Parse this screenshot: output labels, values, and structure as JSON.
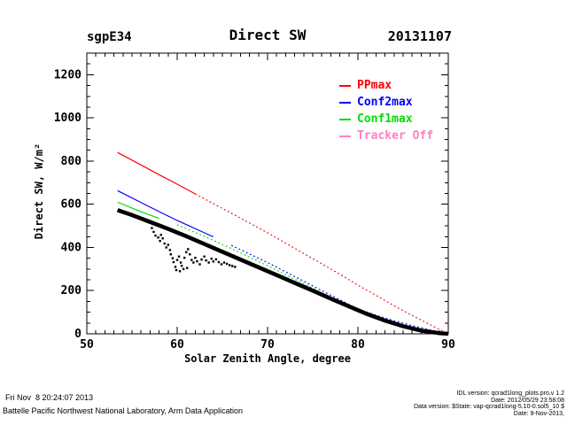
{
  "header": {
    "site": "sgpE34",
    "title": "Direct SW",
    "date": "20131107"
  },
  "axes": {
    "x_label": "Solar Zenith Angle, degree",
    "y_label": "Direct SW, W/m²",
    "x_ticks": [
      50,
      60,
      70,
      80,
      90
    ],
    "y_ticks": [
      0,
      200,
      400,
      600,
      800,
      1000,
      1200
    ]
  },
  "legend": {
    "items": [
      {
        "label": "PPmax",
        "color": "#ff0000"
      },
      {
        "label": "Conf2max",
        "color": "#0000ff"
      },
      {
        "label": "Conf1max",
        "color": "#00dd00"
      },
      {
        "label": "Tracker Off",
        "color": "#ff7fc0"
      }
    ]
  },
  "footer": {
    "left_line1": "Fri Nov  8 20:24:07 2013",
    "left_line2": "Battelle Pacific Northwest National Laboratory, Arm Data Application",
    "right_lines": [
      "IDL version: qcrad1long_plots.pro,v 1.2",
      "Date: 2012/05/29 23:58:08",
      "Data version: $State: vap-qcrad1long-5.10-0.sol5_10 $",
      "Date: 9-Nov-2013,"
    ]
  },
  "chart_data": {
    "type": "line",
    "title": "Direct SW",
    "xlabel": "Solar Zenith Angle, degree",
    "ylabel": "Direct SW, W/m^2",
    "xlim": [
      50,
      90
    ],
    "ylim": [
      0,
      1300
    ],
    "x_major_step": 10,
    "x_minor_step": 1,
    "y_major_step": 200,
    "y_minor_step": 50,
    "grid": false,
    "legend_position": "upper-right-inside",
    "series": [
      {
        "name": "PPmax",
        "color": "#ff0000",
        "solid_until": 62,
        "x": [
          53.4,
          56,
          58,
          60,
          62,
          64,
          66,
          68,
          70,
          72,
          74,
          76,
          78,
          80,
          82,
          84,
          86,
          88,
          90
        ],
        "y": [
          840,
          782,
          737,
          693,
          648,
          603,
          558,
          513,
          468,
          420,
          372,
          324,
          276,
          225,
          178,
          130,
          85,
          42,
          0
        ]
      },
      {
        "name": "Conf2max",
        "color": "#0000ff",
        "solid_until": 65,
        "x": [
          53.4,
          56,
          58,
          60,
          62,
          64,
          66,
          68,
          70,
          72,
          74,
          76,
          78,
          80,
          82,
          84,
          86,
          88,
          90
        ],
        "y": [
          663,
          608,
          566,
          525,
          487,
          449,
          410,
          370,
          330,
          287,
          244,
          200,
          158,
          115,
          86,
          60,
          38,
          18,
          0
        ]
      },
      {
        "name": "Conf1max",
        "color": "#00dd00",
        "solid_until": 59,
        "x": [
          53.4,
          56,
          58,
          60,
          62,
          64,
          66,
          68,
          70,
          72,
          74,
          76,
          78,
          80,
          82,
          84,
          86,
          88,
          90
        ],
        "y": [
          610,
          565,
          535,
          505,
          469,
          433,
          395,
          355,
          315,
          274,
          233,
          190,
          150,
          110,
          80,
          53,
          32,
          14,
          0
        ]
      },
      {
        "name": "Tracker Off",
        "color": "#ff7fc0",
        "solid_until": 90,
        "x": [],
        "y": []
      }
    ],
    "observed_band": {
      "name": "measured-direct-sw",
      "color": "#000000",
      "stroke_width": 4.6,
      "x": [
        53.4,
        55,
        57,
        59,
        61,
        63,
        65,
        67,
        69,
        71,
        73,
        75,
        77,
        79,
        81,
        83,
        85,
        87,
        89,
        90
      ],
      "y": [
        573,
        550,
        518,
        486,
        452,
        416,
        380,
        344,
        308,
        272,
        236,
        200,
        163,
        127,
        92,
        61,
        35,
        15,
        3,
        0
      ]
    },
    "scatter_points": {
      "name": "cloud-dip-samples",
      "color": "#000000",
      "points": [
        [
          57.2,
          490
        ],
        [
          57.4,
          472
        ],
        [
          57.6,
          455
        ],
        [
          57.9,
          446
        ],
        [
          58.1,
          430
        ],
        [
          58.2,
          458
        ],
        [
          58.4,
          442
        ],
        [
          58.6,
          418
        ],
        [
          58.8,
          400
        ],
        [
          59.0,
          412
        ],
        [
          59.2,
          388
        ],
        [
          59.3,
          368
        ],
        [
          59.5,
          350
        ],
        [
          59.6,
          332
        ],
        [
          59.8,
          310
        ],
        [
          59.9,
          295
        ],
        [
          60.0,
          342
        ],
        [
          60.2,
          358
        ],
        [
          60.3,
          290
        ],
        [
          60.4,
          330
        ],
        [
          60.5,
          315
        ],
        [
          60.7,
          300
        ],
        [
          60.8,
          352
        ],
        [
          61.0,
          378
        ],
        [
          61.1,
          305
        ],
        [
          61.2,
          392
        ],
        [
          61.4,
          368
        ],
        [
          61.6,
          342
        ],
        [
          61.8,
          330
        ],
        [
          62.0,
          352
        ],
        [
          62.2,
          336
        ],
        [
          62.5,
          322
        ],
        [
          62.7,
          344
        ],
        [
          63.0,
          358
        ],
        [
          63.2,
          340
        ],
        [
          63.5,
          330
        ],
        [
          63.8,
          348
        ],
        [
          64.0,
          335
        ],
        [
          64.3,
          345
        ],
        [
          64.6,
          332
        ],
        [
          64.9,
          322
        ],
        [
          65.2,
          330
        ],
        [
          65.5,
          324
        ],
        [
          65.8,
          318
        ],
        [
          66.1,
          314
        ],
        [
          66.4,
          310
        ]
      ]
    }
  }
}
